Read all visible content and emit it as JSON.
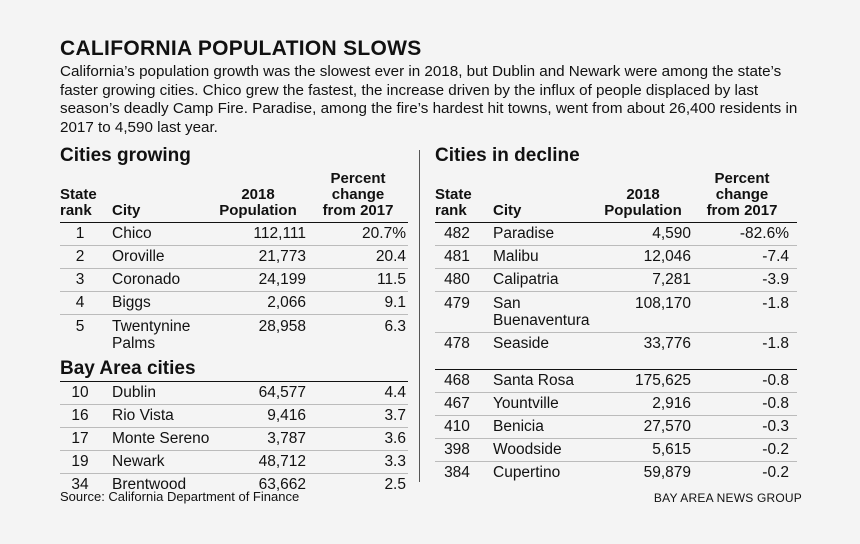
{
  "title": "CALIFORNIA POPULATION SLOWS",
  "intro": "California’s population growth was the slowest ever in 2018, but Dublin and Newark were among the state’s faster growing cities. Chico grew the fastest, the increase driven by the influx of people displaced by last season’s deadly Camp Fire. Paradise, among the fire’s hardest hit towns, went from about 26,400 residents in 2017 to 4,590 last year.",
  "headers": {
    "rank": [
      "State",
      "rank"
    ],
    "city": "City",
    "pop": [
      "2018",
      "Population"
    ],
    "pct": [
      "Percent",
      "change",
      "from 2017"
    ]
  },
  "growing": {
    "title": "Cities growing",
    "rows": [
      {
        "rank": "1",
        "city": "Chico",
        "pop": "112,111",
        "pct": "20.7%"
      },
      {
        "rank": "2",
        "city": "Oroville",
        "pop": "21,773",
        "pct": "20.4"
      },
      {
        "rank": "3",
        "city": "Coronado",
        "pop": "24,199",
        "pct": "11.5"
      },
      {
        "rank": "4",
        "city": "Biggs",
        "pop": "2,066",
        "pct": "9.1"
      },
      {
        "rank": "5",
        "city": "Twentynine Palms",
        "pop": "28,958",
        "pct": "6.3"
      }
    ]
  },
  "bay": {
    "title": "Bay Area cities",
    "rows": [
      {
        "rank": "10",
        "city": "Dublin",
        "pop": "64,577",
        "pct": "4.4"
      },
      {
        "rank": "16",
        "city": "Rio Vista",
        "pop": "9,416",
        "pct": "3.7"
      },
      {
        "rank": "17",
        "city": "Monte Sereno",
        "pop": "3,787",
        "pct": "3.6"
      },
      {
        "rank": "19",
        "city": "Newark",
        "pop": "48,712",
        "pct": "3.3"
      },
      {
        "rank": "34",
        "city": "Brentwood",
        "pop": "63,662",
        "pct": "2.5"
      }
    ]
  },
  "decline": {
    "title": "Cities in decline",
    "rows_a": [
      {
        "rank": "482",
        "city": "Paradise",
        "pop": "4,590",
        "pct": "-82.6%"
      },
      {
        "rank": "481",
        "city": "Malibu",
        "pop": "12,046",
        "pct": "-7.4"
      },
      {
        "rank": "480",
        "city": "Calipatria",
        "pop": "7,281",
        "pct": "-3.9"
      },
      {
        "rank": "479",
        "city": "San Buenaventura",
        "pop": "108,170",
        "pct": "-1.8"
      },
      {
        "rank": "478",
        "city": "Seaside",
        "pop": "33,776",
        "pct": "-1.8"
      }
    ],
    "rows_b": [
      {
        "rank": "468",
        "city": "Santa Rosa",
        "pop": "175,625",
        "pct": "-0.8"
      },
      {
        "rank": "467",
        "city": "Yountville",
        "pop": "2,916",
        "pct": "-0.8"
      },
      {
        "rank": "410",
        "city": "Benicia",
        "pop": "27,570",
        "pct": "-0.3"
      },
      {
        "rank": "398",
        "city": "Woodside",
        "pop": "5,615",
        "pct": "-0.2"
      },
      {
        "rank": "384",
        "city": "Cupertino",
        "pop": "59,879",
        "pct": "-0.2"
      }
    ]
  },
  "source": "Source: California Department of Finance",
  "credit": "BAY AREA NEWS GROUP"
}
